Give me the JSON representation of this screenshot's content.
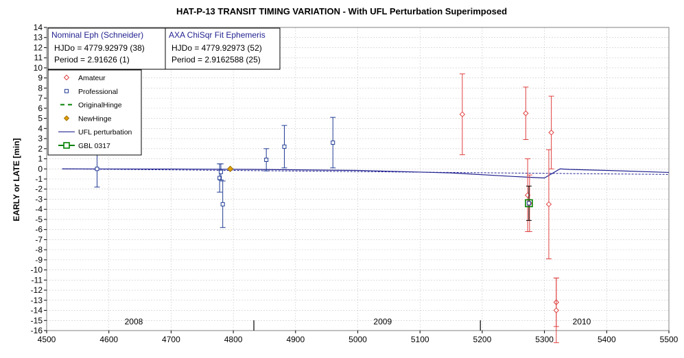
{
  "chart_data": {
    "type": "scatter",
    "title": "HAT-P-13 TRANSIT TIMING VARIATION  - With UFL Perturbation Superimposed",
    "xlabel": "",
    "ylabel": "EARLY or LATE [min]",
    "xlim": [
      4500,
      5500
    ],
    "ylim": [
      -16,
      14
    ],
    "x_ticks": [
      "4500",
      "4600",
      "4700",
      "4800",
      "4900",
      "5000",
      "5100",
      "5200",
      "5300",
      "5400",
      "5500"
    ],
    "y_ticks": [
      "14",
      "13",
      "12",
      "11",
      "10",
      "9",
      "8",
      "7",
      "6",
      "5",
      "4",
      "3",
      "2",
      "1",
      "0",
      "-1",
      "-2",
      "-3",
      "-4",
      "-5",
      "-6",
      "-7",
      "-8",
      "-9",
      "-10",
      "-11",
      "-12",
      "-13",
      "-14",
      "-15",
      "-16"
    ],
    "grid": true,
    "legend_position": "upper-left",
    "year_labels": [
      {
        "text": "2008",
        "x": 4640
      },
      {
        "text": "2009",
        "x": 5040
      },
      {
        "text": "2010",
        "x": 5360
      }
    ],
    "year_dividers": [
      4833,
      5197
    ],
    "annotation_boxes": {
      "nominal": {
        "title": "Nominal Eph (Schneider)",
        "line1": "HJDo = 4779.92979 (38)",
        "line2": "Period = 2.91626 (1)"
      },
      "fit": {
        "title": "AXA ChiSqr Fit Ephemeris",
        "line1": "HJDo = 4779.92973 (52)",
        "line2": "Period = 2.9162588 (25)"
      }
    },
    "series": [
      {
        "name": "Amateur",
        "marker": "diamond",
        "color": "#e04040",
        "points": [
          {
            "x": 5168,
            "y": 5.4,
            "err": 4.0
          },
          {
            "x": 5270,
            "y": 5.5,
            "err": 2.6
          },
          {
            "x": 5273,
            "y": -2.6,
            "err": 3.6
          },
          {
            "x": 5276,
            "y": -3.4,
            "err": 2.8
          },
          {
            "x": 5307,
            "y": -3.5,
            "err": 5.4
          },
          {
            "x": 5311,
            "y": 3.6,
            "err": 3.6
          },
          {
            "x": 5319,
            "y": -13.2,
            "err": 2.4
          },
          {
            "x": 5319,
            "y": -14.0,
            "err": 3.2
          }
        ]
      },
      {
        "name": "Professional",
        "marker": "square",
        "color": "#1f3a93",
        "points": [
          {
            "x": 4581,
            "y": 0.0,
            "err": 1.8
          },
          {
            "x": 4778,
            "y": -0.9,
            "err": 1.4
          },
          {
            "x": 4780,
            "y": -0.3,
            "err": 0.8
          },
          {
            "x": 4783,
            "y": -3.5,
            "err": 2.3
          },
          {
            "x": 4853,
            "y": 0.9,
            "err": 1.1
          },
          {
            "x": 4882,
            "y": 2.2,
            "err": 2.1
          },
          {
            "x": 4960,
            "y": 2.6,
            "err": 2.5
          }
        ]
      },
      {
        "name": "OriginalHinge",
        "marker": "dash",
        "color": "#008000",
        "points": []
      },
      {
        "name": "NewHinge",
        "marker": "diamond-filled",
        "color": "#e0a000",
        "points": [
          {
            "x": 4795,
            "y": 0.0,
            "err": 0
          }
        ]
      },
      {
        "name": "UFL perturbation",
        "marker": "line",
        "color": "#1f1f8f",
        "points": [
          {
            "x": 4525,
            "y": 0.0
          },
          {
            "x": 4700,
            "y": -0.01
          },
          {
            "x": 4830,
            "y": -0.05
          },
          {
            "x": 5000,
            "y": -0.15
          },
          {
            "x": 5150,
            "y": -0.4
          },
          {
            "x": 5250,
            "y": -0.75
          },
          {
            "x": 5300,
            "y": -0.9
          },
          {
            "x": 5325,
            "y": 0.0
          },
          {
            "x": 5340,
            "y": -0.05
          },
          {
            "x": 5400,
            "y": -0.15
          },
          {
            "x": 5500,
            "y": -0.35
          }
        ]
      },
      {
        "name": "Nominal baseline",
        "marker": "dashed-line",
        "color": "#1f1f8f",
        "points": [
          {
            "x": 4525,
            "y": 0.0
          },
          {
            "x": 5500,
            "y": -0.55
          }
        ]
      },
      {
        "name": "GBL 0317",
        "marker": "square-green",
        "color": "#008000",
        "points": [
          {
            "x": 5275,
            "y": -3.4,
            "err": 1.7
          }
        ]
      }
    ]
  }
}
